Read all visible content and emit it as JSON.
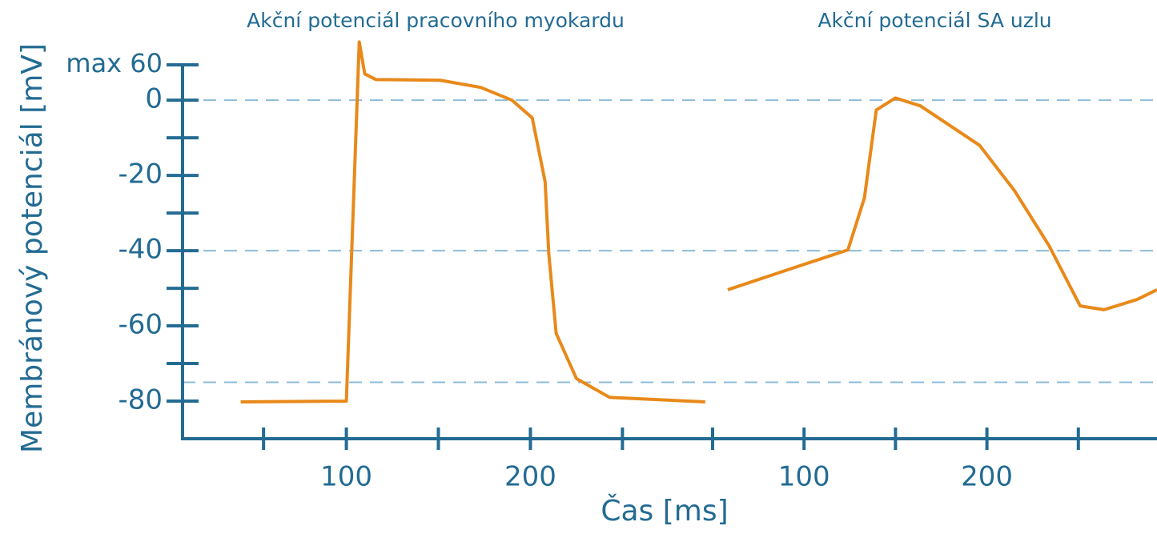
{
  "chart_data": {
    "type": "line",
    "y_label": "Membránový potenciál [mV]",
    "x_label": "Čas [ms]",
    "y_annotation": "max 60",
    "ylim": [
      -90,
      16
    ],
    "yticks": [
      0,
      -20,
      -40,
      -60,
      -80
    ],
    "yticks_minor": [
      -10,
      -30,
      -50,
      -70
    ],
    "reference_lines": [
      0,
      -40,
      -75
    ],
    "axis_color": "#236b93",
    "line_color": "#e8891a",
    "reference_color": "#8cbbd8",
    "panels": [
      {
        "title": "Akční potenciál pracovního myokardu",
        "xlim": [
          11,
          299
        ],
        "xticks": [
          100,
          200
        ],
        "xticks_minor": [
          55,
          150,
          250,
          299
        ],
        "x": [
          42.6,
          100,
          107,
          110,
          116,
          151,
          173,
          190,
          201,
          208,
          210,
          214,
          225,
          243,
          295
        ],
        "values": [
          -80.2,
          -80,
          15.5,
          7,
          5.5,
          5.3,
          3.4,
          0,
          -4.7,
          -21.7,
          -40.9,
          -62,
          -74,
          -79,
          -80.2
        ]
      },
      {
        "title": "Akční potenciál SA uzlu",
        "xlim": [
          50,
          293
        ],
        "xticks": [
          100,
          200
        ],
        "xticks_minor": [
          50,
          150,
          250
        ],
        "x": [
          58.3,
          97.8,
          124,
          133,
          139.5,
          150,
          163.6,
          196,
          215,
          234,
          251,
          264,
          282,
          293
        ],
        "values": [
          -50.4,
          -44,
          -39.8,
          -26,
          -2.6,
          0.6,
          -1.5,
          -12,
          -24,
          -38.7,
          -54.7,
          -55.7,
          -53,
          -50.4
        ]
      }
    ]
  }
}
